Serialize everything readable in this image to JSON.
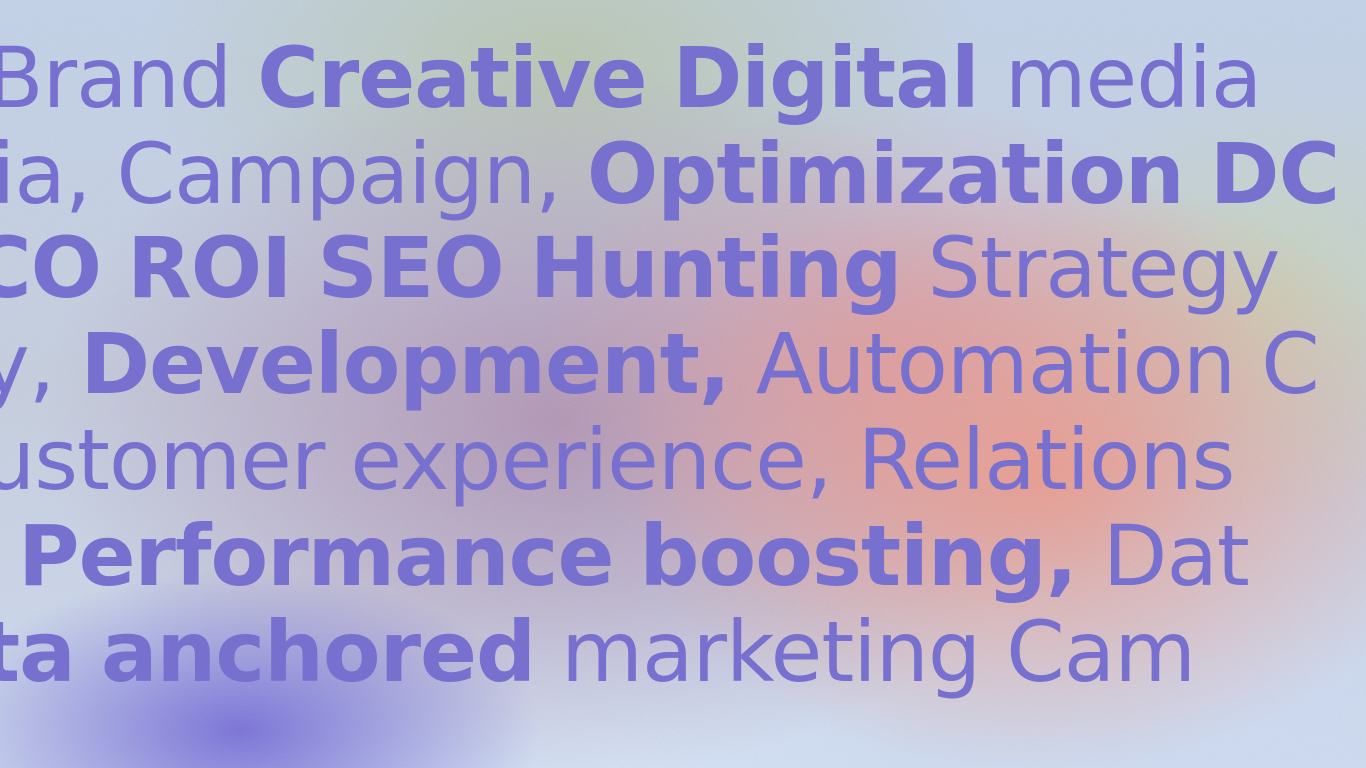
{
  "lines": [
    {
      "words": [
        {
          "text": "Brand",
          "bold": false
        },
        {
          "text": "Creative",
          "bold": true
        },
        {
          "text": "Digital",
          "bold": true
        },
        {
          "text": "media",
          "bold": false
        }
      ]
    },
    {
      "words": [
        {
          "text": "ia,",
          "bold": false
        },
        {
          "text": "Campaign,",
          "bold": false
        },
        {
          "text": "Optimization",
          "bold": true
        },
        {
          "text": "DC",
          "bold": true
        }
      ]
    },
    {
      "words": [
        {
          "text": "CO",
          "bold": true
        },
        {
          "text": "ROI",
          "bold": true
        },
        {
          "text": "SEO",
          "bold": true
        },
        {
          "text": "Hunting",
          "bold": true
        },
        {
          "text": "Strategy",
          "bold": false
        }
      ]
    },
    {
      "words": [
        {
          "text": "y,",
          "bold": false
        },
        {
          "text": "Development,",
          "bold": true
        },
        {
          "text": "Automation",
          "bold": false
        },
        {
          "text": "C",
          "bold": false
        }
      ]
    },
    {
      "words": [
        {
          "text": "ustomer",
          "bold": false
        },
        {
          "text": "experience,",
          "bold": false
        },
        {
          "text": "Relations",
          "bold": false
        }
      ]
    },
    {
      "words": [
        {
          "text": "Performance",
          "bold": true
        },
        {
          "text": "boosting,",
          "bold": true
        },
        {
          "text": "Dat",
          "bold": false
        }
      ]
    },
    {
      "words": [
        {
          "text": "ta",
          "bold": true
        },
        {
          "text": "anchored",
          "bold": true
        },
        {
          "text": "marketing",
          "bold": false
        },
        {
          "text": "Cam",
          "bold": false
        }
      ]
    }
  ],
  "colors": {
    "text": "#7870cf"
  }
}
